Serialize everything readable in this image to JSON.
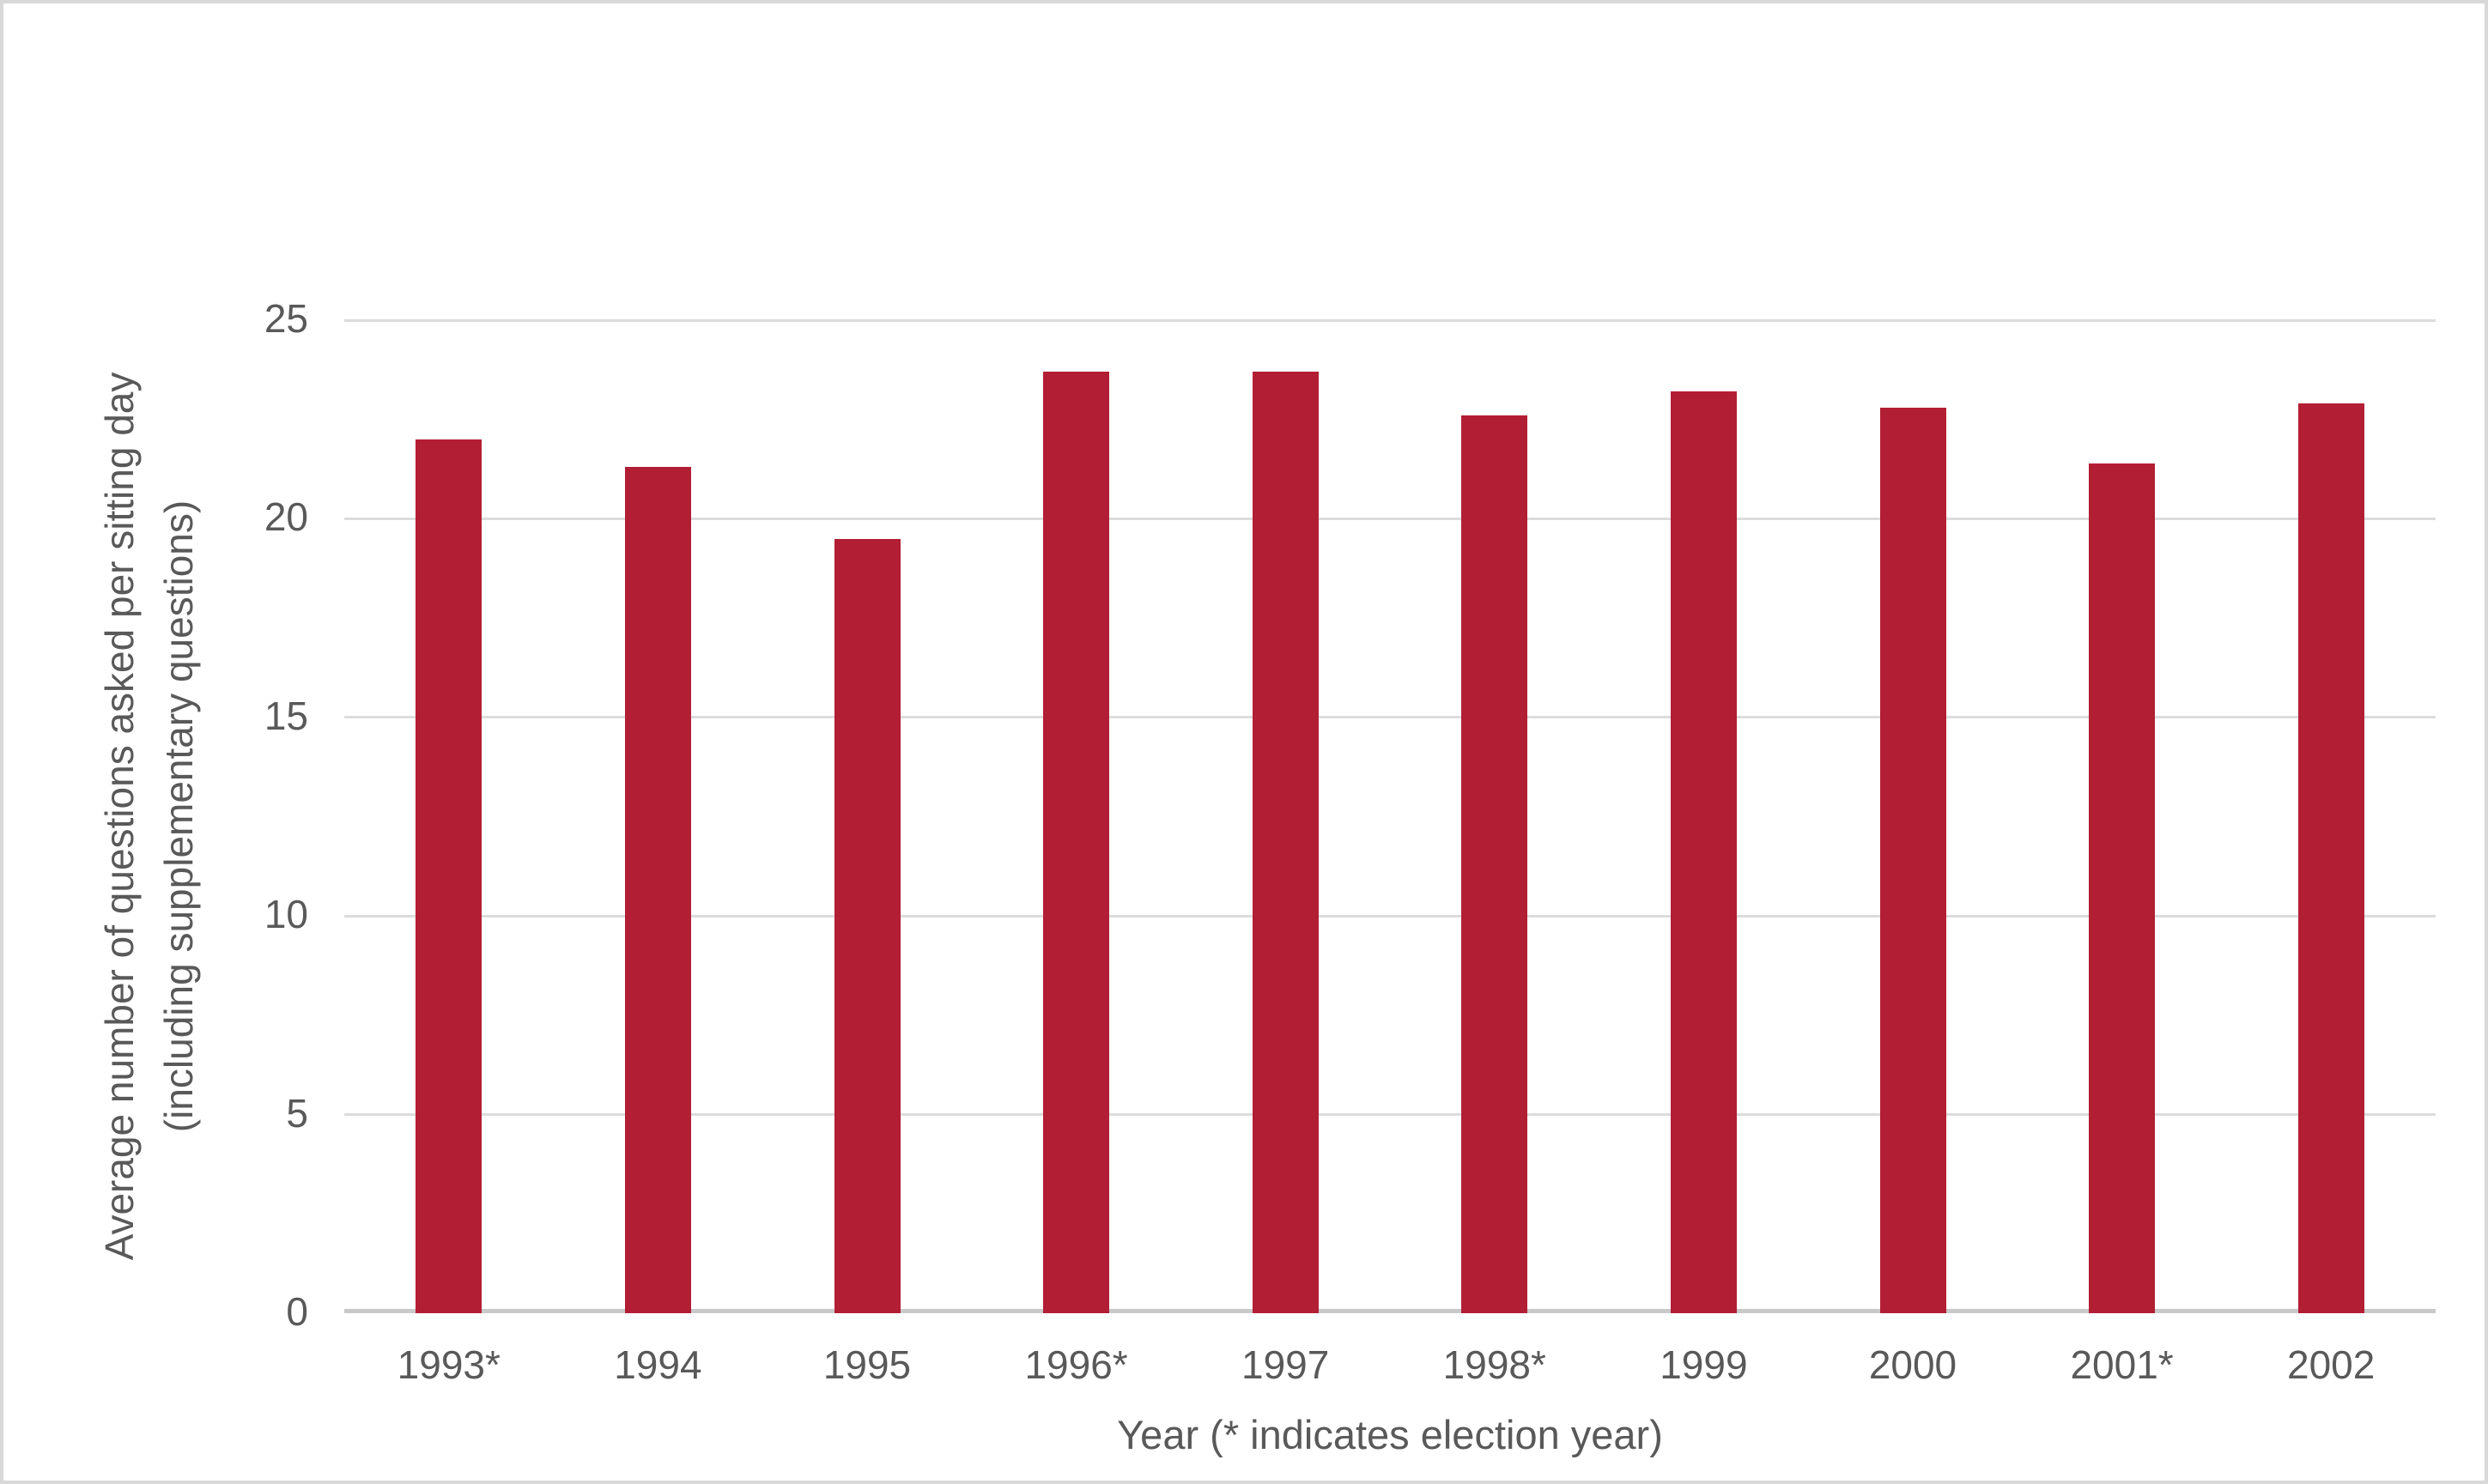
{
  "colors": {
    "bar": "#B21E34",
    "grid": "#DCDCDC",
    "axis_line": "#C9C9C9",
    "text": "#595959",
    "border": "#D8D8D8",
    "background": "#FFFFFF"
  },
  "chart_data": {
    "type": "bar",
    "title": "",
    "categories": [
      "1993*",
      "1994",
      "1995",
      "1996*",
      "1997",
      "1998*",
      "1999",
      "2000",
      "2001*",
      "2002"
    ],
    "values": [
      22.0,
      21.3,
      19.5,
      23.7,
      23.7,
      22.6,
      23.2,
      22.8,
      21.4,
      22.9
    ],
    "xlabel": "Year (* indicates election year)",
    "ylabel_line1": "Average number of questions asked per sitting day",
    "ylabel_line2": "(including supplementary questions)",
    "ylim": [
      0,
      25
    ],
    "yticks": [
      0,
      5,
      10,
      15,
      20,
      25
    ],
    "grid": "horizontal gridlines, light gray",
    "legend": "none",
    "bar_color": "#B21E34"
  }
}
